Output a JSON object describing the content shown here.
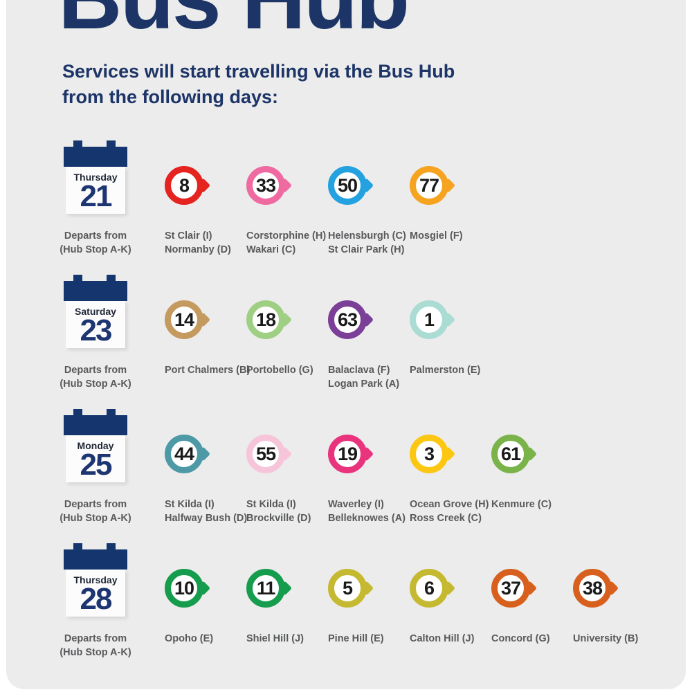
{
  "page": {
    "title": "Bus Hub",
    "subtitle_line1": "Services will start travelling via the Bus Hub",
    "subtitle_line2": "from the following days:"
  },
  "colors": {
    "navy": "#1d3566",
    "panel_gray": "#ececec",
    "label_gray": "#58595b"
  },
  "departs": {
    "line1": "Departs from",
    "line2": "(Hub Stop A-K)"
  },
  "rows": [
    {
      "day": "Thursday",
      "date": "21",
      "routes": [
        {
          "number": "8",
          "color": "#e5231f",
          "label_line1": "St Clair (I)",
          "label_line2": "Normanby (D)"
        },
        {
          "number": "33",
          "color": "#ee6aa0",
          "label_line1": "Corstorphine (H)",
          "label_line2": "Wakari (C)"
        },
        {
          "number": "50",
          "color": "#24a1df",
          "label_line1": "Helensburgh (C)",
          "label_line2": "St Clair Park (H)"
        },
        {
          "number": "77",
          "color": "#f6a320",
          "label_line1": "Mosgiel (F)",
          "label_line2": ""
        }
      ]
    },
    {
      "day": "Saturday",
      "date": "23",
      "routes": [
        {
          "number": "14",
          "color": "#c49a5f",
          "label_line1": "Port Chalmers (B)",
          "label_line2": ""
        },
        {
          "number": "18",
          "color": "#9fcf82",
          "label_line1": "Portobello (G)",
          "label_line2": ""
        },
        {
          "number": "63",
          "color": "#7b3f98",
          "label_line1": "Balaclava (F)",
          "label_line2": "Logan Park (A)"
        },
        {
          "number": "1",
          "color": "#aadcd3",
          "label_line1": "Palmerston (E)",
          "label_line2": ""
        }
      ]
    },
    {
      "day": "Monday",
      "date": "25",
      "routes": [
        {
          "number": "44",
          "color": "#4d9aa6",
          "label_line1": "St Kilda (I)",
          "label_line2": "Halfway Bush (D)"
        },
        {
          "number": "55",
          "color": "#f7c5da",
          "label_line1": "St Kilda (I)",
          "label_line2": "Brockville (D)"
        },
        {
          "number": "19",
          "color": "#e9337d",
          "label_line1": "Waverley (I)",
          "label_line2": "Belleknowes (A)"
        },
        {
          "number": "3",
          "color": "#fcc712",
          "label_line1": "Ocean Grove (H)",
          "label_line2": "Ross Creek (C)"
        },
        {
          "number": "61",
          "color": "#79b34a",
          "label_line1": "Kenmure (C)",
          "label_line2": ""
        }
      ]
    },
    {
      "day": "Thursday",
      "date": "28",
      "routes": [
        {
          "number": "10",
          "color": "#169c4d",
          "label_line1": "Opoho (E)",
          "label_line2": ""
        },
        {
          "number": "11",
          "color": "#169c4d",
          "label_line1": "Shiel Hill (J)",
          "label_line2": ""
        },
        {
          "number": "5",
          "color": "#c6b932",
          "label_line1": "Pine Hill (E)",
          "label_line2": ""
        },
        {
          "number": "6",
          "color": "#c6b932",
          "label_line1": "Calton Hill (J)",
          "label_line2": ""
        },
        {
          "number": "37",
          "color": "#d8601f",
          "label_line1": "Concord (G)",
          "label_line2": ""
        },
        {
          "number": "38",
          "color": "#d8601f",
          "label_line1": "University (B)",
          "label_line2": ""
        }
      ]
    }
  ]
}
